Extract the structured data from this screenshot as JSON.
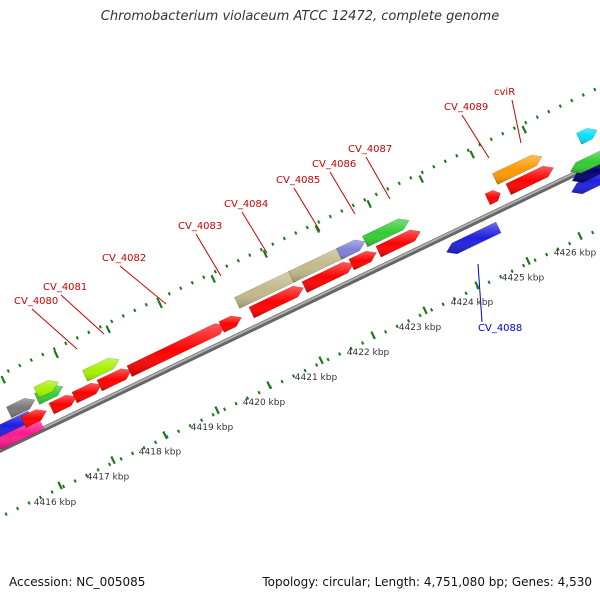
{
  "title": "Chromobacterium violaceum ATCC 12472, complete genome",
  "footer": {
    "accession": "Accession: NC_005085",
    "summary": "Topology: circular; Length: 4,751,080 bp; Genes: 4,530"
  },
  "ruler_ticks": [
    {
      "label": "4416 kbp"
    },
    {
      "label": "4417 kbp"
    },
    {
      "label": "4418 kbp"
    },
    {
      "label": "4419 kbp"
    },
    {
      "label": "4420 kbp"
    },
    {
      "label": "4421 kbp"
    },
    {
      "label": "4422 kbp"
    },
    {
      "label": "4423 kbp"
    },
    {
      "label": "4424 kbp"
    },
    {
      "label": "4425 kbp"
    },
    {
      "label": "4426 kbp"
    }
  ],
  "gene_labels": [
    {
      "name": "CV_4080",
      "strand": "forward",
      "color": "#cc0000"
    },
    {
      "name": "CV_4081",
      "strand": "forward",
      "color": "#cc0000"
    },
    {
      "name": "CV_4082",
      "strand": "forward",
      "color": "#cc0000"
    },
    {
      "name": "CV_4083",
      "strand": "forward",
      "color": "#cc0000"
    },
    {
      "name": "CV_4084",
      "strand": "forward",
      "color": "#cc0000"
    },
    {
      "name": "CV_4085",
      "strand": "forward",
      "color": "#cc0000"
    },
    {
      "name": "CV_4086",
      "strand": "forward",
      "color": "#cc0000"
    },
    {
      "name": "CV_4087",
      "strand": "forward",
      "color": "#cc0000"
    },
    {
      "name": "CV_4089",
      "strand": "forward",
      "color": "#cc0000"
    },
    {
      "name": "cviR",
      "strand": "forward",
      "color": "#cc0000"
    },
    {
      "name": "CV_4088",
      "strand": "reverse",
      "color": "#0000cc"
    }
  ],
  "colors": {
    "backbone": "#888888",
    "tick_dots": "#1a7a1a",
    "gene_red": "#ff0000",
    "gene_blue": "#1f1fe0",
    "gene_green": "#33cc33",
    "gene_khaki": "#c3b98a",
    "gene_orange": "#ff9900",
    "gene_purple": "#8080d8",
    "gene_gray": "#777777",
    "gene_lime": "#a6f000",
    "gene_magenta": "#ff1a8c",
    "gene_cyan": "#00e0ff",
    "gene_navy": "#000070"
  }
}
